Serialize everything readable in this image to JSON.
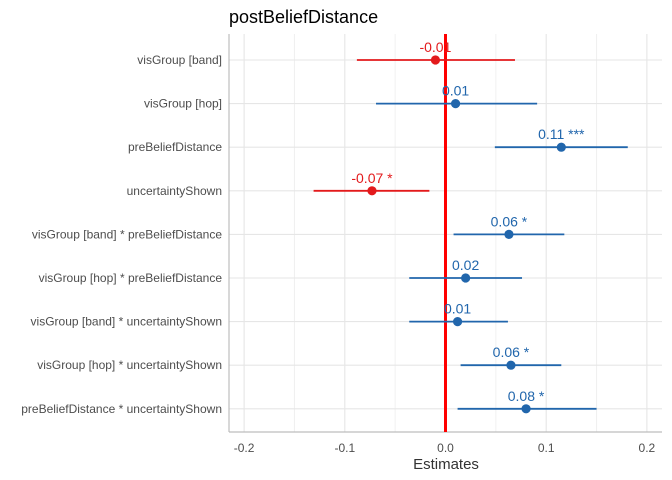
{
  "chart_data": {
    "type": "forest",
    "title": "postBeliefDistance",
    "xlabel": "Estimates",
    "xlim": [
      -0.215,
      0.215
    ],
    "x_ticks": [
      -0.2,
      -0.1,
      0.0,
      0.1,
      0.2
    ],
    "x_tick_labels": [
      "-0.2",
      "-0.1",
      "0.0",
      "0.1",
      "0.2"
    ],
    "zero_line_color": "#ff0000",
    "positive_color": "#2166ac",
    "negative_color": "#e31a1c",
    "grid": true,
    "terms": [
      {
        "term": "visGroup [band]",
        "estimate": -0.01,
        "ci_low": -0.088,
        "ci_high": 0.069,
        "label": "-0.01"
      },
      {
        "term": "visGroup [hop]",
        "estimate": 0.01,
        "ci_low": -0.069,
        "ci_high": 0.091,
        "label": "0.01"
      },
      {
        "term": "preBeliefDistance",
        "estimate": 0.115,
        "ci_low": 0.049,
        "ci_high": 0.181,
        "label": "0.11 ***"
      },
      {
        "term": "uncertaintyShown",
        "estimate": -0.073,
        "ci_low": -0.131,
        "ci_high": -0.016,
        "label": "-0.07 *"
      },
      {
        "term": "visGroup [band] * preBeliefDistance",
        "estimate": 0.063,
        "ci_low": 0.008,
        "ci_high": 0.118,
        "label": "0.06 *"
      },
      {
        "term": "visGroup [hop] * preBeliefDistance",
        "estimate": 0.02,
        "ci_low": -0.036,
        "ci_high": 0.076,
        "label": "0.02"
      },
      {
        "term": "visGroup [band] * uncertaintyShown",
        "estimate": 0.012,
        "ci_low": -0.036,
        "ci_high": 0.062,
        "label": "0.01"
      },
      {
        "term": "visGroup [hop] * uncertaintyShown",
        "estimate": 0.065,
        "ci_low": 0.015,
        "ci_high": 0.115,
        "label": "0.06 *"
      },
      {
        "term": "preBeliefDistance * uncertaintyShown",
        "estimate": 0.08,
        "ci_low": 0.012,
        "ci_high": 0.15,
        "label": "0.08 *"
      }
    ]
  }
}
